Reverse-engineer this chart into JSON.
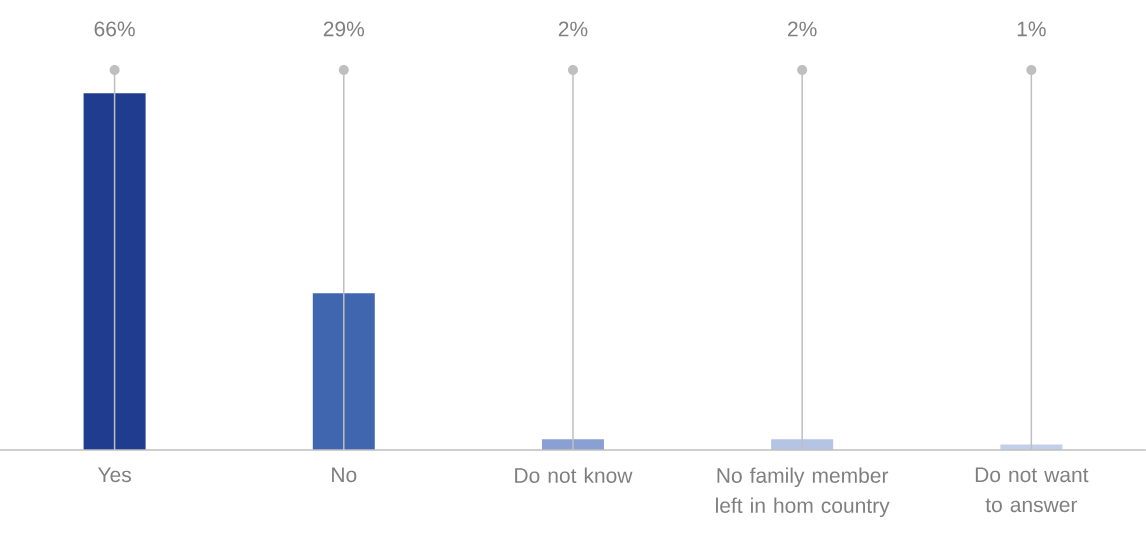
{
  "chart_data": {
    "type": "bar",
    "categories": [
      "Yes",
      "No",
      "Do not know",
      "No family member left in hom country",
      "Do not want to answer"
    ],
    "values": [
      66,
      29,
      2,
      2,
      1
    ],
    "value_labels": [
      "66%",
      "29%",
      "2%",
      "2%",
      "1%"
    ],
    "colors": [
      "#1f3c8e",
      "#4166b0",
      "#8aa0d2",
      "#b5c4e4",
      "#c3cfe9"
    ],
    "grid": "x"
  }
}
